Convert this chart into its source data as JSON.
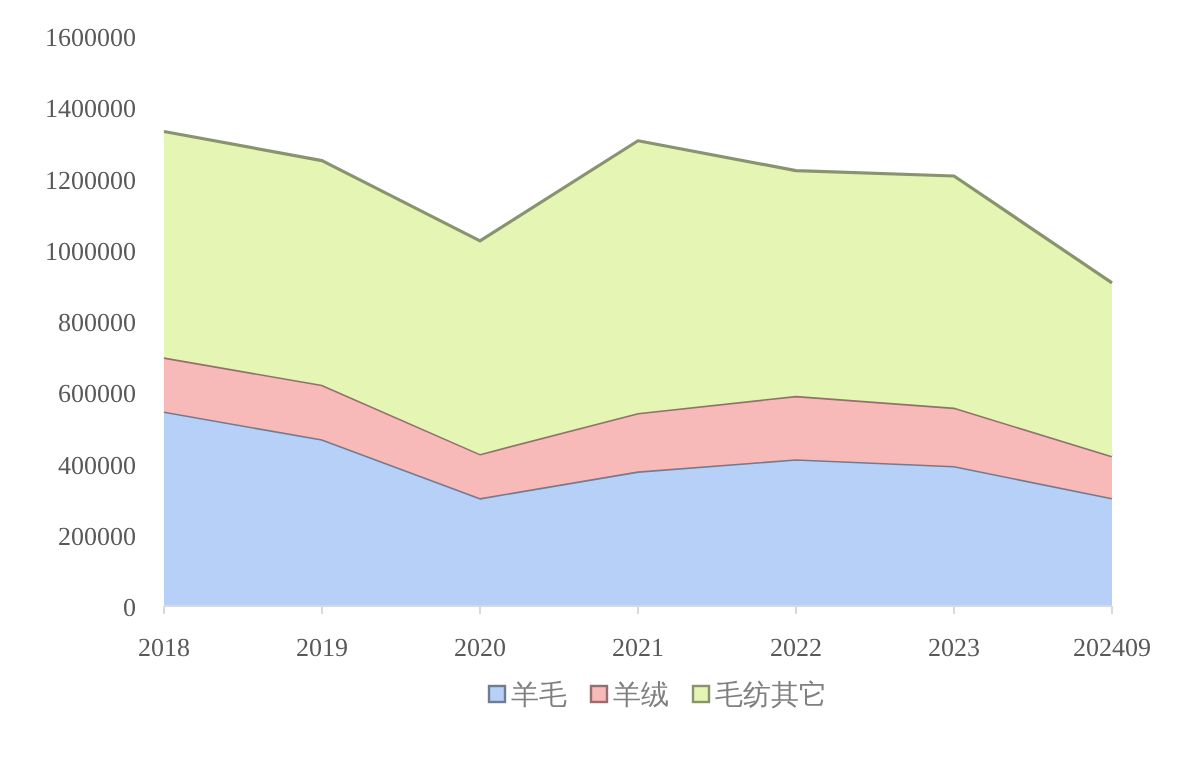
{
  "chart_data": {
    "type": "area",
    "stacked": true,
    "categories": [
      "2018",
      "2019",
      "2020",
      "2021",
      "2022",
      "2023",
      "202409"
    ],
    "series": [
      {
        "name": "羊毛",
        "color": "#b7d0f7",
        "values": [
          546000,
          468000,
          303000,
          378000,
          412000,
          393000,
          303000
        ]
      },
      {
        "name": "羊绒",
        "color": "#f8b9b9",
        "values": [
          152000,
          153000,
          124000,
          164000,
          178000,
          164000,
          118000
        ]
      },
      {
        "name": "毛纺其它",
        "color": "#e4f5b4",
        "values": [
          634000,
          629000,
          598000,
          764000,
          632000,
          650000,
          486000
        ]
      }
    ],
    "ylim": [
      0,
      1600000
    ],
    "yticks": [
      0,
      200000,
      400000,
      600000,
      800000,
      1000000,
      1200000,
      1400000,
      1600000
    ],
    "grid": false,
    "legend": "bottom"
  }
}
